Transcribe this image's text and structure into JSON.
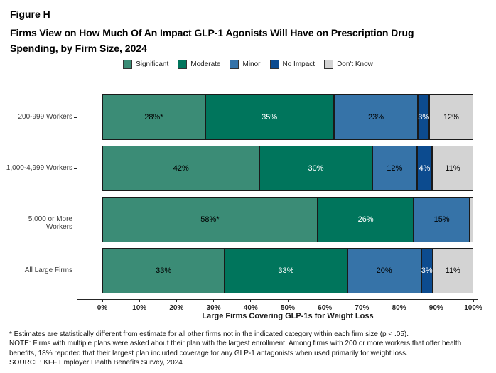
{
  "figure_label": "Figure H",
  "title_line1": "Firms View on How Much Of An Impact GLP-1 Agonists Will Have on Prescription Drug",
  "title_line2": "Spending, by Firm Size, 2024",
  "colors": {
    "significant": "#3B8C76",
    "moderate": "#00755C",
    "minor": "#3673A8",
    "no_impact": "#0C4B8F",
    "dont_know": "#D3D3D3",
    "axis": "#262626",
    "segment_border": "#1a1a1a"
  },
  "legend": [
    {
      "label": "Significant",
      "color": "#3B8C76"
    },
    {
      "label": "Moderate",
      "color": "#00755C"
    },
    {
      "label": "Minor",
      "color": "#3673A8"
    },
    {
      "label": "No Impact",
      "color": "#0C4B8F"
    },
    {
      "label": "Don't Know",
      "color": "#D3D3D3"
    }
  ],
  "chart_data": {
    "type": "bar",
    "stacked": true,
    "orientation": "horizontal",
    "title": "Firms View on How Much Of An Impact GLP-1 Agonists Will Have on Prescription Drug Spending, by Firm Size, 2024",
    "categories": [
      "200-999 Workers",
      "1,000-4,999 Workers",
      "5,000 or More Workers",
      "All Large Firms"
    ],
    "series": [
      {
        "name": "Significant",
        "color": "#3B8C76",
        "label_color": "#000000",
        "values": [
          28,
          42,
          58,
          33
        ],
        "labels": [
          "28%*",
          "42%",
          "58%*",
          "33%"
        ]
      },
      {
        "name": "Moderate",
        "color": "#00755C",
        "label_color": "#ffffff",
        "values": [
          35,
          30,
          26,
          33
        ],
        "labels": [
          "35%",
          "30%",
          "26%",
          "33%"
        ]
      },
      {
        "name": "Minor",
        "color": "#3673A8",
        "label_color": "#000000",
        "values": [
          23,
          12,
          15,
          20
        ],
        "labels": [
          "23%",
          "12%",
          "15%",
          "20%"
        ]
      },
      {
        "name": "No Impact",
        "color": "#0C4B8F",
        "label_color": "#ffffff",
        "values": [
          3,
          4,
          0,
          3
        ],
        "labels": [
          "3%",
          "4%",
          "",
          "3%"
        ]
      },
      {
        "name": "Don't Know",
        "color": "#D3D3D3",
        "label_color": "#000000",
        "values": [
          12,
          11,
          1,
          11
        ],
        "labels": [
          "12%",
          "11%",
          "",
          "11%"
        ]
      }
    ],
    "xlabel": "Large Firms Covering GLP-1s for Weight Loss",
    "ylabel": "",
    "xlim": [
      0,
      100
    ],
    "x_ticks": [
      "0%",
      "10%",
      "20%",
      "30%",
      "40%",
      "50%",
      "60%",
      "70%",
      "80%",
      "90%",
      "100%"
    ],
    "grid": false,
    "legend_position": "top-center"
  },
  "footnotes": [
    "* Estimates are statistically different from estimate for all other firms not in the indicated category within each firm size (p < .05).",
    "NOTE: Firms with multiple plans were asked about their plan with the largest enrollment.  Among firms with 200 or more workers that offer health benefits, 18% reported that their largest plan included coverage for any GLP-1 antagonists when used primarily for weight loss.",
    "SOURCE: KFF Employer Health Benefits Survey, 2024"
  ]
}
